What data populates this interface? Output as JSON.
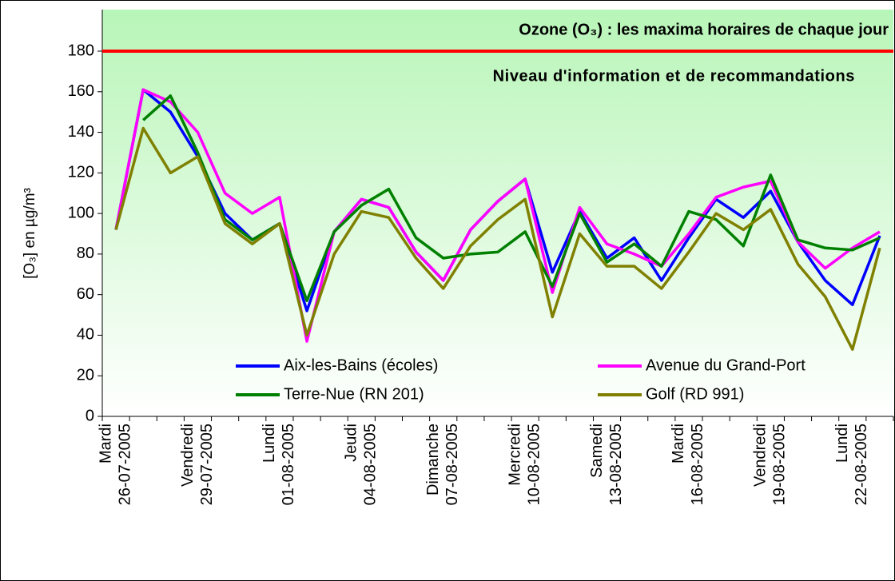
{
  "chart_data": {
    "type": "line",
    "title": "Ozone (O₃) : les maxima horaires de chaque jour",
    "y_label": "[O₃] en µg/m³",
    "threshold": {
      "value": 180,
      "label": "Niveau d'information et  de recommandations",
      "color": "#ff0000"
    },
    "categories": [
      [
        "Mardi",
        "26-07-2005"
      ],
      null,
      null,
      [
        "Vendredi",
        "29-07-2005"
      ],
      null,
      null,
      [
        "Lundi",
        "01-08-2005"
      ],
      null,
      null,
      [
        "Jeudi",
        "04-08-2005"
      ],
      null,
      null,
      [
        "Dimanche",
        "07-08-2005"
      ],
      null,
      null,
      [
        "Mercredi",
        "10-08-2005"
      ],
      null,
      null,
      [
        "Samedi",
        "13-08-2005"
      ],
      null,
      null,
      [
        "Mardi",
        "16-08-2005"
      ],
      null,
      null,
      [
        "Vendredi",
        "19-08-2005"
      ],
      null,
      null,
      [
        "Lundi",
        "22-08-2005"
      ],
      null
    ],
    "series": [
      {
        "name": "Aix-les-Bains (écoles)",
        "color": "#0000ff",
        "values": [
          92,
          161,
          150,
          128,
          100,
          87,
          95,
          52,
          91,
          107,
          103,
          81,
          67,
          92,
          106,
          117,
          71,
          101,
          78,
          88,
          67,
          88,
          107,
          98,
          111,
          86,
          67,
          55,
          89
        ]
      },
      {
        "name": "Avenue du Grand-Port",
        "color": "#ff00ff",
        "values": [
          92,
          161,
          155,
          140,
          110,
          100,
          108,
          37,
          91,
          107,
          103,
          81,
          67,
          92,
          106,
          117,
          61,
          103,
          85,
          80,
          74,
          90,
          108,
          113,
          116,
          86,
          73,
          83,
          91
        ]
      },
      {
        "name": "Terre-Nue (RN 201)",
        "color": "#008000",
        "values": [
          null,
          146,
          158,
          130,
          97,
          87,
          95,
          57,
          91,
          104,
          112,
          88,
          78,
          80,
          81,
          91,
          64,
          100,
          76,
          85,
          74,
          101,
          97,
          84,
          119,
          87,
          83,
          82,
          88
        ]
      },
      {
        "name": "Golf (RD 991)",
        "color": "#808000",
        "values": [
          92,
          142,
          120,
          128,
          95,
          85,
          95,
          40,
          80,
          101,
          98,
          78,
          63,
          84,
          97,
          107,
          49,
          90,
          74,
          74,
          63,
          81,
          100,
          92,
          102,
          75,
          59,
          33,
          83
        ]
      }
    ],
    "ylim": [
      0,
      180
    ],
    "yticks": [
      0,
      20,
      40,
      60,
      80,
      100,
      120,
      140,
      160,
      180
    ]
  }
}
